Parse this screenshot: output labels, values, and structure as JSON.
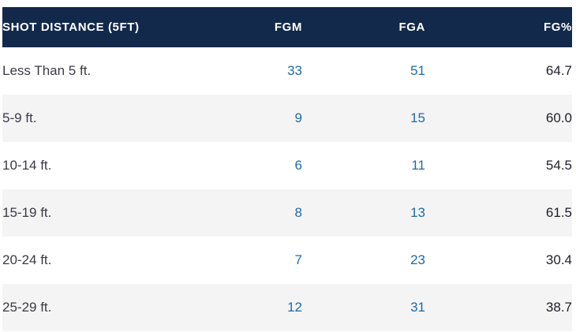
{
  "colors": {
    "header_bg": "#13294b",
    "header_text": "#ffffff",
    "row_bg": "#ffffff",
    "row_alt_bg": "#f4f4f5",
    "value_link_blue": "#1d6ba9",
    "label_text": "#3a3b45",
    "pct_text": "#202129"
  },
  "table": {
    "columns": [
      {
        "key": "label",
        "label": "SHOT DISTANCE (5FT)",
        "align": "left"
      },
      {
        "key": "fgm",
        "label": "FGM",
        "align": "right"
      },
      {
        "key": "fga",
        "label": "FGA",
        "align": "right"
      },
      {
        "key": "fgpct",
        "label": "FG%",
        "align": "right"
      }
    ],
    "rows": [
      {
        "label": "Less Than 5 ft.",
        "fgm": "33",
        "fga": "51",
        "fgpct": "64.7"
      },
      {
        "label": "5-9 ft.",
        "fgm": "9",
        "fga": "15",
        "fgpct": "60.0"
      },
      {
        "label": "10-14 ft.",
        "fgm": "6",
        "fga": "11",
        "fgpct": "54.5"
      },
      {
        "label": "15-19 ft.",
        "fgm": "8",
        "fga": "13",
        "fgpct": "61.5"
      },
      {
        "label": "20-24 ft.",
        "fgm": "7",
        "fga": "23",
        "fgpct": "30.4"
      },
      {
        "label": "25-29 ft.",
        "fgm": "12",
        "fga": "31",
        "fgpct": "38.7"
      }
    ]
  },
  "chart_data": {
    "type": "table",
    "title": "SHOT DISTANCE (5FT)",
    "columns": [
      "SHOT DISTANCE (5FT)",
      "FGM",
      "FGA",
      "FG%"
    ],
    "rows": [
      [
        "Less Than 5 ft.",
        33,
        51,
        64.7
      ],
      [
        "5-9 ft.",
        9,
        15,
        60.0
      ],
      [
        "10-14 ft.",
        6,
        11,
        54.5
      ],
      [
        "15-19 ft.",
        8,
        13,
        61.5
      ],
      [
        "20-24 ft.",
        7,
        23,
        30.4
      ],
      [
        "25-29 ft.",
        12,
        31,
        38.7
      ]
    ]
  }
}
